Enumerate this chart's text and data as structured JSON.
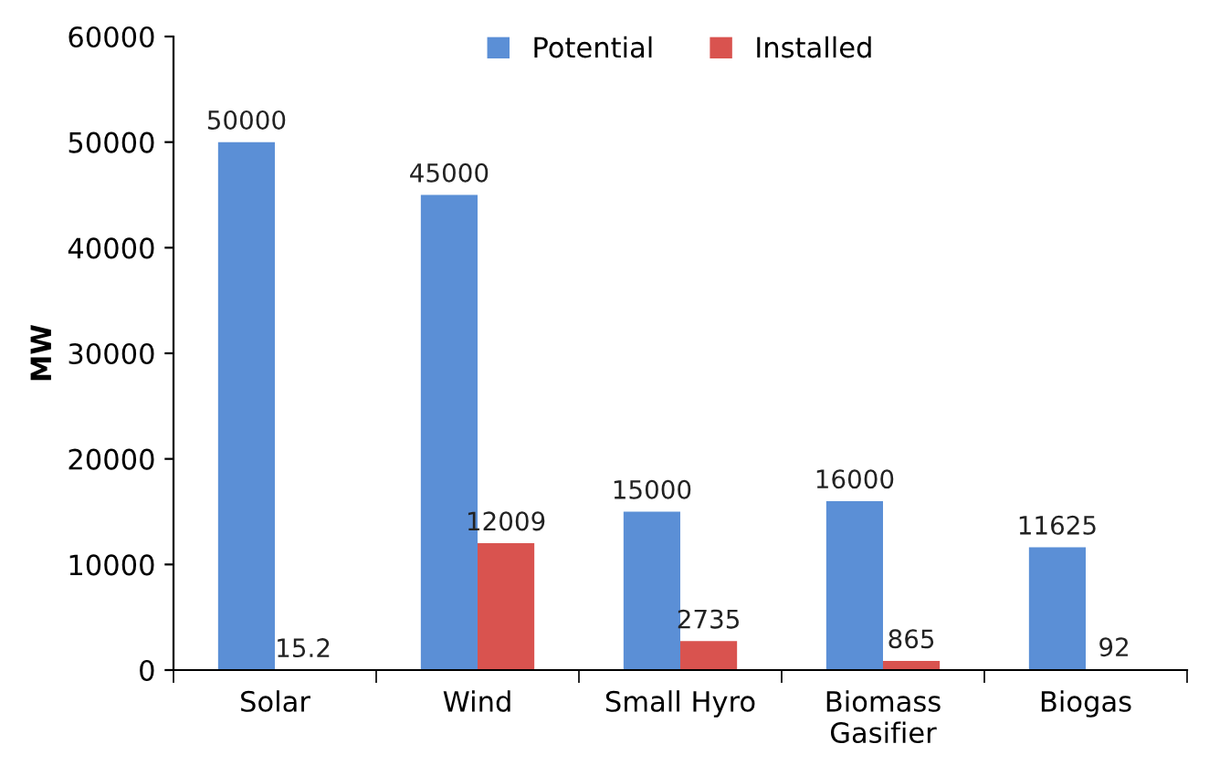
{
  "chart_data": {
    "type": "bar",
    "ylabel": "MW",
    "categories": [
      "Solar",
      "Wind",
      "Small Hyro",
      "Biomass Gasifier",
      "Biogas"
    ],
    "series": [
      {
        "name": "Potential",
        "color": "#5b8fd6",
        "values": [
          50000,
          45000,
          15000,
          16000,
          11625
        ]
      },
      {
        "name": "Installed",
        "color": "#d9534f",
        "values": [
          15.2,
          12009,
          2735,
          865,
          92
        ]
      }
    ],
    "ylim": [
      0,
      60000
    ],
    "yticks": [
      0,
      10000,
      20000,
      30000,
      40000,
      50000,
      60000
    ],
    "grid": false,
    "legend": "top",
    "data_labels": true
  }
}
